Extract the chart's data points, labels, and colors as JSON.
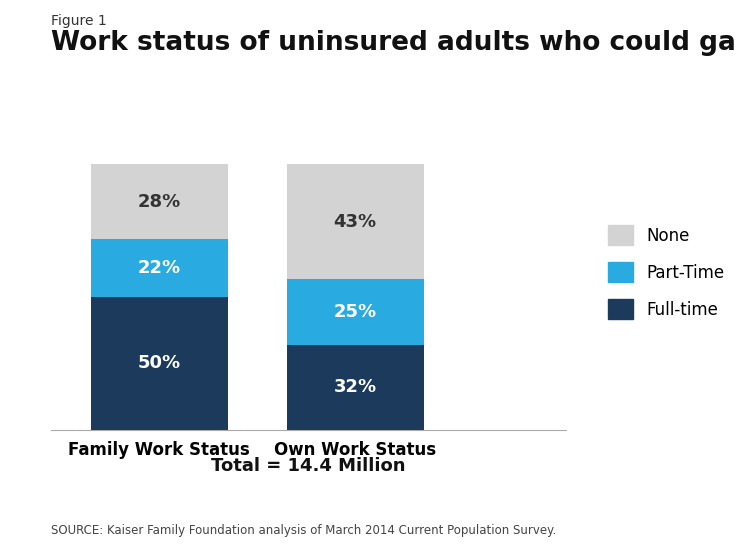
{
  "figure_label": "Figure 1",
  "title": "Work status of uninsured adults who could gain Medicaid",
  "categories": [
    "Family Work Status",
    "Own Work Status"
  ],
  "fulltime": [
    50,
    32
  ],
  "parttime": [
    22,
    25
  ],
  "none": [
    28,
    43
  ],
  "colors": {
    "fulltime": "#1b3a5c",
    "parttime": "#29abe2",
    "none": "#d3d3d3"
  },
  "labels": {
    "fulltime": "Full-time",
    "parttime": "Part-Time",
    "none": "None"
  },
  "bar_width": 0.28,
  "bar_positions": [
    0.22,
    0.62
  ],
  "xlim": [
    0.0,
    1.05
  ],
  "ylim": [
    0,
    108
  ],
  "total_text": "Total = 14.4 Million",
  "source_text": "SOURCE: Kaiser Family Foundation analysis of March 2014 Current Population Survey.",
  "background_color": "#ffffff",
  "title_fontsize": 19,
  "figure_label_fontsize": 10,
  "xlabel_fontsize": 12,
  "bar_label_fontsize": 13,
  "legend_fontsize": 12,
  "total_fontsize": 13,
  "source_fontsize": 8.5
}
